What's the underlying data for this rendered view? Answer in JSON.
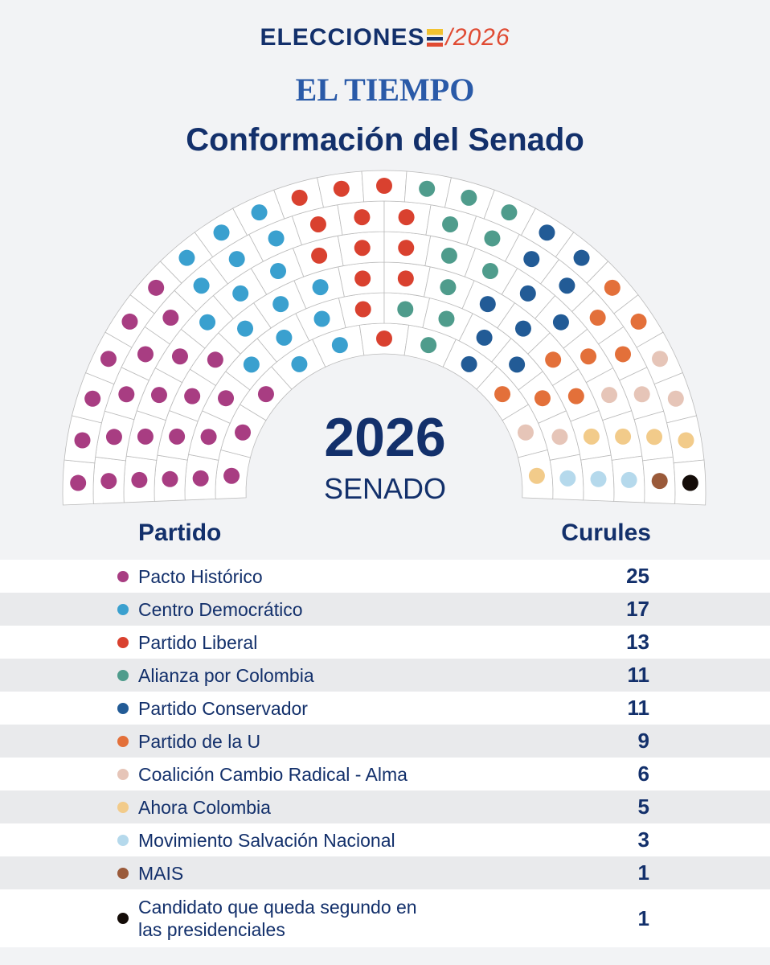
{
  "header": {
    "logo_text": "ELECCIONES",
    "logo_year": "2026",
    "brand": "EL TIEMPO",
    "title": "Conformación del Senado"
  },
  "center": {
    "year": "2026",
    "chamber": "SENADO"
  },
  "table": {
    "col_party": "Partido",
    "col_seats": "Curules"
  },
  "chart_data": {
    "type": "parliament",
    "title": "Conformación del Senado",
    "total": 102,
    "rows": 6,
    "parties": [
      {
        "name": "Pacto Histórico",
        "seats": 25,
        "color": "#a83d82"
      },
      {
        "name": "Centro Democrático",
        "seats": 17,
        "color": "#3aa0cf"
      },
      {
        "name": "Partido Liberal",
        "seats": 13,
        "color": "#d9412f"
      },
      {
        "name": "Alianza por Colombia",
        "seats": 11,
        "color": "#4f9c8c"
      },
      {
        "name": "Partido Conservador",
        "seats": 11,
        "color": "#225b96"
      },
      {
        "name": "Partido de la U",
        "seats": 9,
        "color": "#e3703a"
      },
      {
        "name": "Coalición Cambio Radical - Alma",
        "seats": 6,
        "color": "#e6c5b8"
      },
      {
        "name": "Ahora Colombia",
        "seats": 5,
        "color": "#f2cb8a"
      },
      {
        "name": "Movimiento Salvación Nacional",
        "seats": 3,
        "color": "#b5d9ec"
      },
      {
        "name": "MAIS",
        "seats": 1,
        "color": "#9a5a3a"
      },
      {
        "name": "Candidato que queda segundo en las presidenciales",
        "seats": 1,
        "color": "#140c08"
      }
    ]
  }
}
